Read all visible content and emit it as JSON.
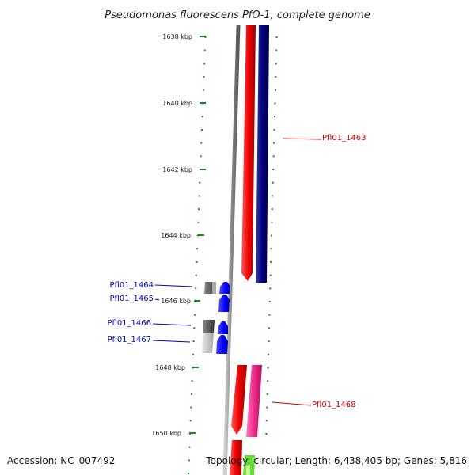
{
  "title": "Pseudomonas fluorescens PfO-1, complete genome",
  "ticks": [
    "1638 kbp",
    "1640 kbp",
    "1642 kbp",
    "1644 kbp",
    "1646 kbp",
    "1648 kbp",
    "1650 kbp"
  ],
  "gene_labels": [
    {
      "text": "Pfl01_1463",
      "color": "#cc0000"
    },
    {
      "text": "Pfl01_1464",
      "color": "#0000bb"
    },
    {
      "text": "Pfl01_1465",
      "color": "#0000bb"
    },
    {
      "text": "Pfl01_1466",
      "color": "#0000bb"
    },
    {
      "text": "Pfl01_1467",
      "color": "#0000bb"
    },
    {
      "text": "Pfl01_1468",
      "color": "#cc0000"
    }
  ],
  "footer": {
    "accession": "Accession: NC_007492",
    "summary": "Topology: circular; Length: 6,438,405 bp; Genes: 5,816"
  },
  "colors": {
    "backbone": "#8a8a8a",
    "tick": "#1a8a1a",
    "forward_gene": "#ee0000",
    "reverse_gene_dark": "#000080",
    "reverse_gene_pink": "#ee2a8a",
    "small_gene": "#0000ff",
    "feature_dark": "#555555",
    "feature_light": "#c0c0c0",
    "lime": "#66dd33"
  }
}
